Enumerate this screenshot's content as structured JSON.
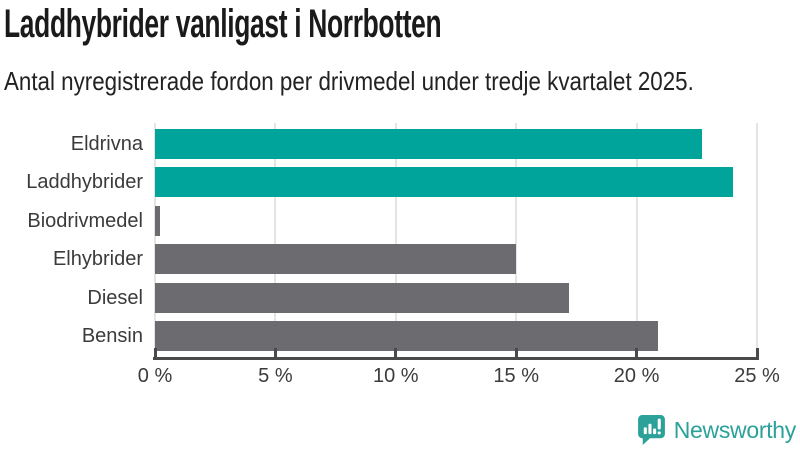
{
  "chart_data": {
    "type": "bar",
    "orientation": "horizontal",
    "title": "Laddhybrider vanligast i Norrbotten",
    "subtitle": "Antal nyregistrerade fordon per drivmedel under tredje kvartalet 2025.",
    "categories": [
      "Eldrivna",
      "Laddhybrider",
      "Biodrivmedel",
      "Elhybrider",
      "Diesel",
      "Bensin"
    ],
    "values": [
      22.7,
      24.0,
      0.2,
      15.0,
      17.2,
      20.9
    ],
    "unit": "%",
    "bar_colors": [
      "#00a49b",
      "#00a49b",
      "#6b6b70",
      "#6b6b70",
      "#6b6b70",
      "#6b6b70"
    ],
    "highlight_color": "#00a49b",
    "default_color": "#6b6b70",
    "xlim": [
      0,
      25
    ],
    "xticks": [
      0,
      5,
      10,
      15,
      20,
      25
    ],
    "xtick_labels": [
      "0 %",
      "5 %",
      "10 %",
      "15 %",
      "20 %",
      "25 %"
    ],
    "grid": true,
    "gridline_color": "#e4e4e4",
    "axis_color": "#4a4a4a",
    "legend": "none"
  },
  "footer": {
    "logo_text": "Newsworthy",
    "logo_color": "#2ba19a",
    "logo_icon": "bar-chart-speech-bubble-icon"
  }
}
